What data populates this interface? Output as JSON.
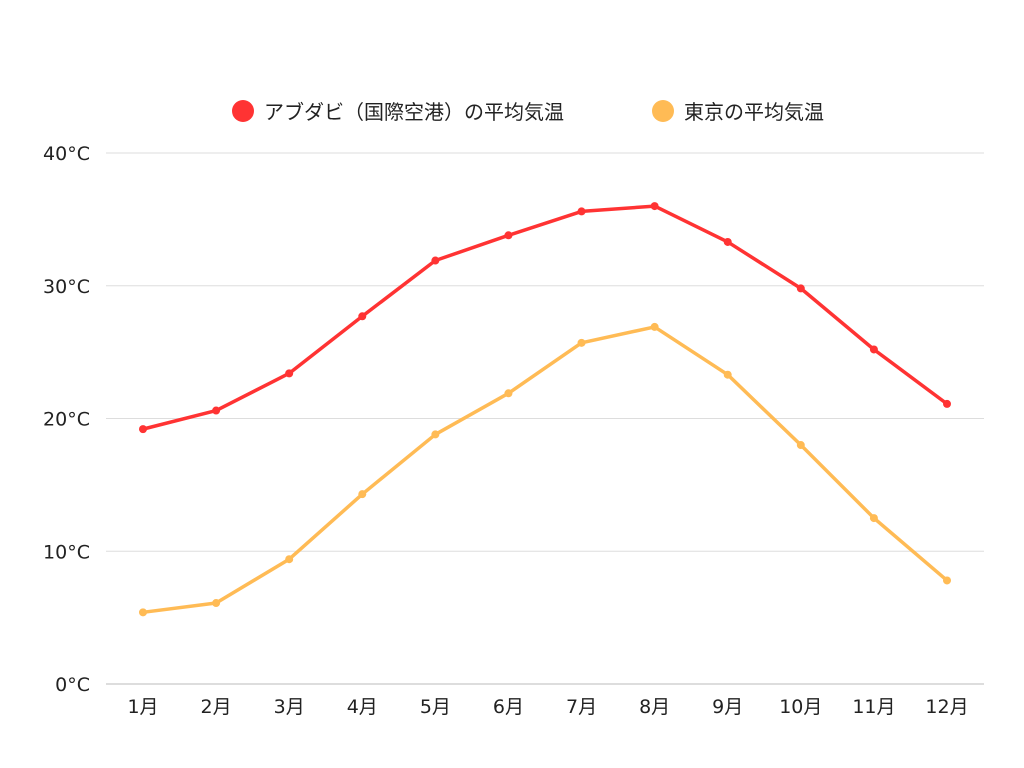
{
  "chart_data": {
    "type": "line",
    "title": "",
    "xlabel": "",
    "ylabel": "",
    "categories": [
      "1月",
      "2月",
      "3月",
      "4月",
      "5月",
      "6月",
      "7月",
      "8月",
      "9月",
      "10月",
      "11月",
      "12月"
    ],
    "y_ticks": [
      "0°C",
      "10°C",
      "20°C",
      "30°C",
      "40°C"
    ],
    "y_tick_values": [
      0,
      10,
      20,
      30,
      40
    ],
    "ylim": [
      0,
      40
    ],
    "grid": true,
    "legend_placement": "top-center",
    "series": [
      {
        "name": "アブダビ（国際空港）の平均気温",
        "color": "#ff3333",
        "values": [
          19.2,
          20.6,
          23.4,
          27.7,
          31.9,
          33.8,
          35.6,
          36.0,
          33.3,
          29.8,
          25.2,
          21.1
        ]
      },
      {
        "name": "東京の平均気温",
        "color": "#ffbb55",
        "values": [
          5.4,
          6.1,
          9.4,
          14.3,
          18.8,
          21.9,
          25.7,
          26.9,
          23.3,
          18.0,
          12.5,
          7.8
        ]
      }
    ]
  }
}
